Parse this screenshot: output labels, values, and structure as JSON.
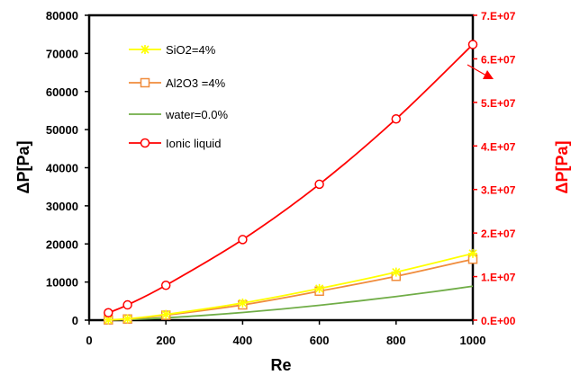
{
  "chart_data": {
    "type": "line",
    "xlabel": "Re",
    "ylabel_left": "ΔP[Pa]",
    "ylabel_right": "ΔP[Pa]",
    "xlim": [
      0,
      1000
    ],
    "ylim_left": [
      0,
      80000
    ],
    "ylim_right": [
      0,
      70000000
    ],
    "x_ticks": [
      "0",
      "200",
      "400",
      "600",
      "800",
      "1000"
    ],
    "y_left_ticks": [
      "0",
      "10000",
      "20000",
      "30000",
      "40000",
      "50000",
      "60000",
      "70000",
      "80000"
    ],
    "y_right_ticks": [
      "0.E+00",
      "1.E+07",
      "2.E+07",
      "3.E+07",
      "4.E+07",
      "5.E+07",
      "6.E+07",
      "7.E+07"
    ],
    "grid": false,
    "legend_position": "top-left",
    "colors": {
      "left_axis": "#000000",
      "right_axis": "#ff0000",
      "annotation_arrow": "#ff0000"
    },
    "series": [
      {
        "name": "SiO2=4%",
        "axis": "left",
        "color": "#ffff00",
        "marker": "asterisk",
        "x": [
          50,
          100,
          200,
          400,
          600,
          800,
          1000
        ],
        "y": [
          80,
          350,
          1500,
          4500,
          8300,
          12600,
          17500
        ]
      },
      {
        "name": "Al2O3 =4%",
        "axis": "left",
        "color": "#f08c3c",
        "marker": "square",
        "x": [
          50,
          100,
          200,
          400,
          600,
          800,
          1000
        ],
        "y": [
          70,
          300,
          1300,
          4000,
          7600,
          11500,
          16000
        ]
      },
      {
        "name": "water=0.0%",
        "axis": "left",
        "color": "#70ad47",
        "marker": "none",
        "x": [
          50,
          100,
          200,
          300,
          400,
          500,
          600,
          700,
          800,
          900,
          1000
        ],
        "y": [
          50,
          150,
          600,
          1250,
          2000,
          2900,
          3900,
          5000,
          6200,
          7500,
          8900
        ]
      },
      {
        "name": "Ionic liquid",
        "axis": "right",
        "color": "#ff0000",
        "marker": "circle",
        "x": [
          50,
          100,
          200,
          400,
          600,
          800,
          1000
        ],
        "y": [
          1700000,
          3500000,
          8000000,
          18500000,
          31200000,
          46200000,
          63300000
        ]
      }
    ]
  }
}
